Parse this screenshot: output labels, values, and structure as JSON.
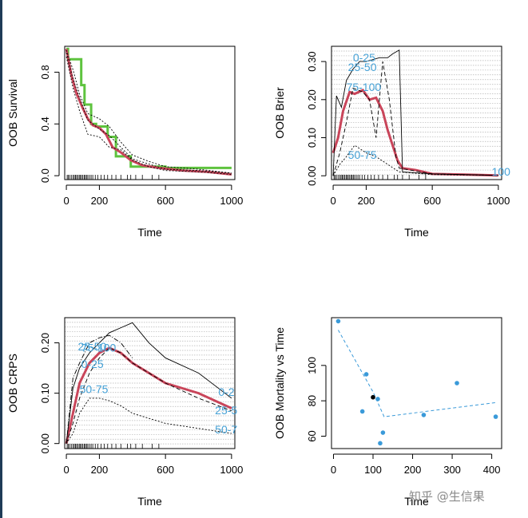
{
  "chart_data": [
    {
      "type": "line",
      "xlabel": "Time",
      "ylabel": "OOB Survival",
      "xlim": [
        -10,
        1020
      ],
      "ylim": [
        -0.03,
        1.0
      ],
      "x_ticks": [
        "0",
        "200",
        "600",
        "1000"
      ],
      "y_ticks": [
        "0.0",
        "0.4",
        "0.8"
      ],
      "series": [
        {
          "style": "green step (Kaplan-Meier)",
          "color": "#5ec33e",
          "x": [
            0,
            10,
            60,
            90,
            110,
            150,
            180,
            250,
            300,
            390,
            500,
            600,
            1000
          ],
          "values": [
            0.98,
            0.9,
            0.9,
            0.7,
            0.55,
            0.4,
            0.38,
            0.3,
            0.15,
            0.07,
            0.07,
            0.06,
            0.06
          ]
        },
        {
          "style": "red mean survival",
          "color": "#c9455a",
          "x": [
            0,
            30,
            60,
            100,
            130,
            160,
            200,
            240,
            280,
            330,
            390,
            460,
            560,
            700,
            850,
            1000
          ],
          "values": [
            0.98,
            0.78,
            0.64,
            0.52,
            0.44,
            0.39,
            0.37,
            0.32,
            0.22,
            0.18,
            0.12,
            0.08,
            0.06,
            0.04,
            0.03,
            0.01
          ]
        },
        {
          "style": "dotted",
          "color": "#000000",
          "x": [
            0,
            40,
            80,
            130,
            200,
            260,
            330,
            400,
            500,
            600,
            800,
            1000
          ],
          "values": [
            0.92,
            0.68,
            0.5,
            0.32,
            0.3,
            0.22,
            0.2,
            0.12,
            0.07,
            0.04,
            0.03,
            0.01
          ]
        },
        {
          "style": "dotted",
          "color": "#000000",
          "x": [
            0,
            40,
            80,
            130,
            200,
            260,
            330,
            400,
            500,
            600,
            800,
            1000
          ],
          "values": [
            0.97,
            0.82,
            0.63,
            0.48,
            0.44,
            0.38,
            0.26,
            0.16,
            0.11,
            0.07,
            0.05,
            0.02
          ]
        },
        {
          "style": "dotted",
          "color": "#000000",
          "x": [
            0,
            40,
            80,
            130,
            200,
            260,
            330,
            400,
            500,
            600,
            800,
            1000
          ],
          "values": [
            0.95,
            0.75,
            0.6,
            0.43,
            0.36,
            0.31,
            0.22,
            0.13,
            0.09,
            0.05,
            0.04,
            0.02
          ]
        }
      ]
    },
    {
      "type": "line",
      "xlabel": "Time",
      "ylabel": "OOB Brier",
      "xlim": [
        -10,
        1020
      ],
      "ylim": [
        -0.01,
        0.34
      ],
      "x_ticks": [
        "0",
        "200",
        "600",
        "1000"
      ],
      "y_ticks": [
        "0.00",
        "0.10",
        "0.20",
        "0.30"
      ],
      "grid": true,
      "labels": [
        {
          "text": "0-25",
          "x": 120,
          "y": 0.3
        },
        {
          "text": "25-50",
          "x": 90,
          "y": 0.275
        },
        {
          "text": "75-100",
          "x": 80,
          "y": 0.223
        },
        {
          "text": "50-75",
          "x": 90,
          "y": 0.045
        },
        {
          "text": "100",
          "x": 960,
          "y": 0.0
        }
      ],
      "series": [
        {
          "style": "red mean",
          "color": "#c9455a",
          "x": [
            0,
            30,
            60,
            100,
            130,
            180,
            220,
            260,
            300,
            330,
            390,
            420,
            500,
            600,
            800,
            1000
          ],
          "values": [
            0.06,
            0.1,
            0.17,
            0.22,
            0.215,
            0.225,
            0.2,
            0.205,
            0.17,
            0.12,
            0.04,
            0.02,
            0.015,
            0.005,
            0.003,
            0.001
          ]
        },
        {
          "style": "solid thin",
          "color": "#000000",
          "x": [
            0,
            20,
            50,
            80,
            120,
            160,
            200,
            280,
            330,
            360,
            400,
            420,
            500,
            600,
            1000
          ],
          "values": [
            0.0,
            0.21,
            0.18,
            0.25,
            0.28,
            0.3,
            0.3,
            0.31,
            0.31,
            0.32,
            0.33,
            0.01,
            0.008,
            0.005,
            0.001
          ]
        },
        {
          "style": "dashed thin",
          "color": "#000000",
          "x": [
            0,
            40,
            80,
            120,
            180,
            220,
            260,
            300,
            340,
            380,
            400,
            600,
            1000
          ],
          "values": [
            0.0,
            0.06,
            0.14,
            0.23,
            0.22,
            0.2,
            0.1,
            0.3,
            0.2,
            0.05,
            0.02,
            0.005,
            0.001
          ]
        },
        {
          "style": "dotted thin",
          "color": "#000000",
          "x": [
            0,
            40,
            80,
            130,
            200,
            260,
            330,
            400,
            600,
            1000
          ],
          "values": [
            0.0,
            0.03,
            0.05,
            0.08,
            0.06,
            0.05,
            0.03,
            0.01,
            0.003,
            0.001
          ]
        }
      ]
    },
    {
      "type": "line",
      "xlabel": "Time",
      "ylabel": "OOB CRPS",
      "xlim": [
        -10,
        1020
      ],
      "ylim": [
        -0.01,
        0.25
      ],
      "x_ticks": [
        "0",
        "200",
        "600",
        "1000"
      ],
      "y_ticks": [
        "0.00",
        "0.10",
        "0.20"
      ],
      "grid": true,
      "labels": [
        {
          "text": "25-50",
          "x": 70,
          "y": 0.185
        },
        {
          "text": "75-100",
          "x": 90,
          "y": 0.183
        },
        {
          "text": "0-25",
          "x": 90,
          "y": 0.15
        },
        {
          "text": "50-75",
          "x": 80,
          "y": 0.1
        },
        {
          "text": "0-2",
          "x": 920,
          "y": 0.095
        },
        {
          "text": "25-5",
          "x": 900,
          "y": 0.058
        },
        {
          "text": "50-7",
          "x": 900,
          "y": 0.02
        }
      ],
      "series": [
        {
          "style": "red mean",
          "color": "#c9455a",
          "x": [
            0,
            40,
            80,
            140,
            200,
            260,
            330,
            400,
            500,
            600,
            800,
            1000
          ],
          "values": [
            0.0,
            0.06,
            0.12,
            0.16,
            0.18,
            0.19,
            0.18,
            0.16,
            0.14,
            0.12,
            0.1,
            0.07
          ]
        },
        {
          "style": "solid thin",
          "color": "#000000",
          "x": [
            0,
            40,
            80,
            140,
            200,
            260,
            330,
            400,
            500,
            600,
            800,
            1000
          ],
          "values": [
            0.0,
            0.11,
            0.15,
            0.18,
            0.2,
            0.22,
            0.23,
            0.24,
            0.2,
            0.17,
            0.14,
            0.09
          ]
        },
        {
          "style": "dashed thin",
          "color": "#000000",
          "x": [
            0,
            40,
            80,
            140,
            200,
            260,
            330,
            400,
            500,
            600,
            800,
            1000
          ],
          "values": [
            0.0,
            0.04,
            0.09,
            0.14,
            0.17,
            0.19,
            0.18,
            0.16,
            0.14,
            0.12,
            0.09,
            0.065
          ]
        },
        {
          "style": "dotted thin",
          "color": "#000000",
          "x": [
            0,
            40,
            80,
            140,
            200,
            260,
            330,
            400,
            500,
            600,
            800,
            1000
          ],
          "values": [
            0.0,
            0.02,
            0.06,
            0.09,
            0.09,
            0.085,
            0.075,
            0.06,
            0.05,
            0.04,
            0.03,
            0.02
          ]
        },
        {
          "style": "dotdash thin",
          "color": "#000000",
          "x": [
            0,
            40,
            80,
            140,
            200,
            260,
            330,
            400
          ],
          "values": [
            0.0,
            0.13,
            0.16,
            0.2,
            0.21,
            0.215,
            0.2,
            0.17
          ]
        }
      ]
    },
    {
      "type": "scatter",
      "xlabel": "Time",
      "ylabel": "OOB Mortality vs Time",
      "xlim": [
        -5,
        425
      ],
      "ylim": [
        53,
        127
      ],
      "x_ticks": [
        "0",
        "100",
        "200",
        "300",
        "400"
      ],
      "y_ticks": [
        "60",
        "80",
        "100"
      ],
      "points": [
        {
          "x": 12,
          "y": 125,
          "color": "#3a9ad9"
        },
        {
          "x": 73,
          "y": 74,
          "color": "#3a9ad9"
        },
        {
          "x": 83,
          "y": 95,
          "color": "#3a9ad9"
        },
        {
          "x": 100,
          "y": 82,
          "color": "#000000"
        },
        {
          "x": 112,
          "y": 81,
          "color": "#3a9ad9"
        },
        {
          "x": 118,
          "y": 56,
          "color": "#3a9ad9"
        },
        {
          "x": 125,
          "y": 62,
          "color": "#3a9ad9"
        },
        {
          "x": 228,
          "y": 72,
          "color": "#3a9ad9"
        },
        {
          "x": 312,
          "y": 90,
          "color": "#3a9ad9"
        },
        {
          "x": 410,
          "y": 71,
          "color": "#3a9ad9"
        }
      ],
      "trend": {
        "style": "dashed",
        "color": "#3a9ad9",
        "x": [
          12,
          100,
          128,
          410
        ],
        "values": [
          120,
          85,
          71,
          79
        ]
      }
    }
  ],
  "watermark": "知乎 @生信果"
}
